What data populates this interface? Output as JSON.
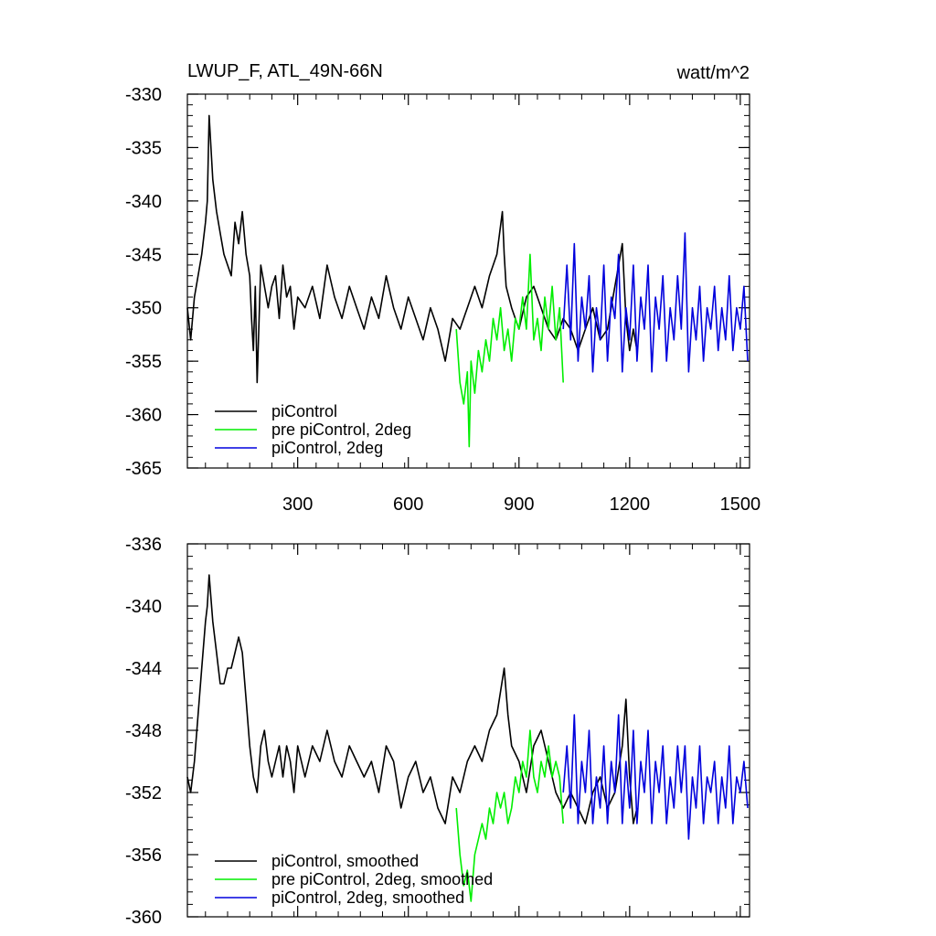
{
  "chart_data": [
    {
      "type": "line",
      "title": "LWUP_F, ATL_49N-66N",
      "units": "watt/m^2",
      "xlim": [
        1,
        1525
      ],
      "ylim": [
        -365,
        -330
      ],
      "x_ticks": [
        300,
        600,
        900,
        1200,
        1500
      ],
      "x_tick_labels": [
        "300",
        "600",
        "900",
        "1200",
        "1500"
      ],
      "y_ticks": [
        -330,
        -335,
        -340,
        -345,
        -350,
        -355,
        -360,
        -365
      ],
      "y_tick_labels": [
        "-330",
        "-335",
        "-340",
        "-345",
        "-350",
        "-355",
        "-360",
        "-365"
      ],
      "legend": "bottom-left",
      "series": [
        {
          "name": "piControl",
          "color": "#000000",
          "x": [
            1,
            10,
            20,
            30,
            40,
            50,
            55,
            60,
            70,
            80,
            90,
            100,
            110,
            120,
            130,
            140,
            150,
            160,
            170,
            175,
            180,
            185,
            190,
            200,
            210,
            220,
            230,
            240,
            250,
            260,
            270,
            280,
            290,
            300,
            320,
            340,
            360,
            380,
            400,
            420,
            440,
            460,
            480,
            500,
            520,
            540,
            560,
            580,
            600,
            620,
            640,
            660,
            680,
            700,
            720,
            740,
            760,
            780,
            800,
            820,
            840,
            855,
            860,
            865,
            880,
            900,
            920,
            940,
            960,
            980,
            1000,
            1020,
            1040,
            1060,
            1080,
            1100,
            1120,
            1140,
            1160,
            1180,
            1190,
            1200,
            1210,
            1220
          ],
          "values": [
            -350,
            -353,
            -349,
            -347,
            -345,
            -342,
            -340,
            -332,
            -338,
            -341,
            -343,
            -345,
            -346,
            -347,
            -342,
            -344,
            -341,
            -345,
            -347,
            -351,
            -354,
            -348,
            -357,
            -346,
            -348,
            -350,
            -348,
            -347,
            -351,
            -346,
            -349,
            -348,
            -352,
            -349,
            -350,
            -348,
            -351,
            -346,
            -349,
            -351,
            -348,
            -350,
            -352,
            -349,
            -351,
            -347,
            -350,
            -352,
            -349,
            -351,
            -353,
            -350,
            -352,
            -355,
            -351,
            -352,
            -350,
            -348,
            -350,
            -347,
            -345,
            -341,
            -345,
            -348,
            -350,
            -352,
            -349,
            -348,
            -350,
            -352,
            -353,
            -351,
            -352,
            -354,
            -352,
            -350,
            -353,
            -352,
            -348,
            -344,
            -351,
            -354,
            -352,
            -354
          ]
        },
        {
          "name": "pre piControl, 2deg",
          "color": "#00ee00",
          "x": [
            730,
            740,
            750,
            760,
            765,
            770,
            780,
            790,
            800,
            810,
            820,
            830,
            840,
            850,
            860,
            870,
            880,
            890,
            900,
            910,
            920,
            930,
            940,
            950,
            960,
            970,
            980,
            990,
            1000,
            1010,
            1020
          ],
          "values": [
            -352,
            -357,
            -359,
            -356,
            -363,
            -355,
            -358,
            -354,
            -356,
            -353,
            -355,
            -351,
            -353,
            -350,
            -354,
            -352,
            -355,
            -351,
            -352,
            -349,
            -352,
            -345,
            -353,
            -351,
            -354,
            -349,
            -352,
            -348,
            -353,
            -350,
            -357
          ]
        },
        {
          "name": "piControl, 2deg",
          "color": "#0000dd",
          "x": [
            1020,
            1030,
            1040,
            1050,
            1060,
            1070,
            1080,
            1090,
            1100,
            1110,
            1120,
            1130,
            1140,
            1150,
            1160,
            1170,
            1180,
            1190,
            1200,
            1210,
            1220,
            1230,
            1240,
            1250,
            1260,
            1270,
            1280,
            1290,
            1300,
            1310,
            1320,
            1330,
            1340,
            1350,
            1360,
            1370,
            1380,
            1390,
            1400,
            1410,
            1420,
            1430,
            1440,
            1450,
            1460,
            1470,
            1480,
            1490,
            1500,
            1510,
            1520
          ],
          "values": [
            -352,
            -346,
            -353,
            -344,
            -355,
            -349,
            -352,
            -347,
            -356,
            -350,
            -353,
            -346,
            -355,
            -349,
            -351,
            -345,
            -356,
            -350,
            -353,
            -346,
            -355,
            -349,
            -352,
            -346,
            -356,
            -349,
            -352,
            -347,
            -355,
            -350,
            -353,
            -347,
            -352,
            -343,
            -356,
            -350,
            -353,
            -348,
            -355,
            -350,
            -352,
            -348,
            -354,
            -350,
            -353,
            -347,
            -354,
            -350,
            -352,
            -348,
            -355
          ]
        }
      ]
    },
    {
      "type": "line",
      "title": "",
      "xlim": [
        1,
        1525
      ],
      "ylim": [
        -360,
        -336
      ],
      "x_ticks": [
        300,
        600,
        900,
        1200,
        1500
      ],
      "y_ticks": [
        -336,
        -340,
        -344,
        -348,
        -352,
        -356,
        -360
      ],
      "y_tick_labels": [
        "-336",
        "-340",
        "-344",
        "-348",
        "-352",
        "-356",
        "-360"
      ],
      "legend": "bottom-left",
      "series": [
        {
          "name": "piControl, smoothed",
          "color": "#000000",
          "x": [
            1,
            10,
            20,
            30,
            40,
            50,
            55,
            60,
            70,
            80,
            90,
            100,
            110,
            120,
            130,
            140,
            150,
            160,
            170,
            180,
            190,
            200,
            210,
            220,
            230,
            240,
            250,
            260,
            270,
            280,
            290,
            300,
            320,
            340,
            360,
            380,
            400,
            420,
            440,
            460,
            480,
            500,
            520,
            540,
            560,
            580,
            600,
            620,
            640,
            660,
            680,
            700,
            720,
            740,
            760,
            780,
            800,
            820,
            840,
            860,
            870,
            880,
            900,
            920,
            940,
            960,
            980,
            1000,
            1020,
            1040,
            1060,
            1080,
            1100,
            1120,
            1140,
            1160,
            1180,
            1190,
            1200,
            1210,
            1220
          ],
          "values": [
            -351,
            -352,
            -350,
            -347,
            -344,
            -341,
            -340,
            -338,
            -341,
            -343,
            -345,
            -345,
            -344,
            -344,
            -343,
            -342,
            -343,
            -346,
            -349,
            -351,
            -352,
            -349,
            -348,
            -350,
            -351,
            -350,
            -349,
            -351,
            -349,
            -350,
            -352,
            -349,
            -351,
            -349,
            -350,
            -348,
            -350,
            -351,
            -349,
            -350,
            -351,
            -350,
            -352,
            -349,
            -350,
            -353,
            -351,
            -350,
            -352,
            -351,
            -353,
            -354,
            -351,
            -352,
            -350,
            -349,
            -350,
            -348,
            -347,
            -344,
            -347,
            -349,
            -350,
            -352,
            -349,
            -348,
            -350,
            -352,
            -353,
            -352,
            -353,
            -354,
            -352,
            -351,
            -353,
            -352,
            -349,
            -346,
            -351,
            -354,
            -353
          ]
        },
        {
          "name": "pre piControl, 2deg, smoothed",
          "color": "#00ee00",
          "x": [
            730,
            740,
            750,
            760,
            770,
            780,
            790,
            800,
            810,
            820,
            830,
            840,
            850,
            860,
            870,
            880,
            890,
            900,
            910,
            920,
            930,
            940,
            950,
            960,
            970,
            980,
            990,
            1000,
            1010,
            1020
          ],
          "values": [
            -353,
            -356,
            -358,
            -357,
            -359,
            -356,
            -355,
            -354,
            -355,
            -353,
            -354,
            -352,
            -353,
            -352,
            -354,
            -353,
            -351,
            -352,
            -350,
            -351,
            -348,
            -351,
            -352,
            -350,
            -351,
            -349,
            -351,
            -350,
            -351,
            -354
          ]
        },
        {
          "name": "piControl, 2deg, smoothed",
          "color": "#0000dd",
          "x": [
            1020,
            1030,
            1040,
            1050,
            1060,
            1070,
            1080,
            1090,
            1100,
            1110,
            1120,
            1130,
            1140,
            1150,
            1160,
            1170,
            1180,
            1190,
            1200,
            1210,
            1220,
            1230,
            1240,
            1250,
            1260,
            1270,
            1280,
            1290,
            1300,
            1310,
            1320,
            1330,
            1340,
            1350,
            1360,
            1370,
            1380,
            1390,
            1400,
            1410,
            1420,
            1430,
            1440,
            1450,
            1460,
            1470,
            1480,
            1490,
            1500,
            1510,
            1520
          ],
          "values": [
            -352,
            -349,
            -353,
            -347,
            -354,
            -350,
            -352,
            -348,
            -354,
            -351,
            -353,
            -349,
            -354,
            -350,
            -352,
            -347,
            -354,
            -350,
            -353,
            -348,
            -354,
            -350,
            -352,
            -348,
            -354,
            -350,
            -352,
            -349,
            -354,
            -351,
            -353,
            -349,
            -352,
            -349,
            -355,
            -351,
            -353,
            -349,
            -354,
            -351,
            -352,
            -350,
            -354,
            -351,
            -353,
            -349,
            -354,
            -351,
            -352,
            -350,
            -353
          ]
        }
      ]
    }
  ]
}
